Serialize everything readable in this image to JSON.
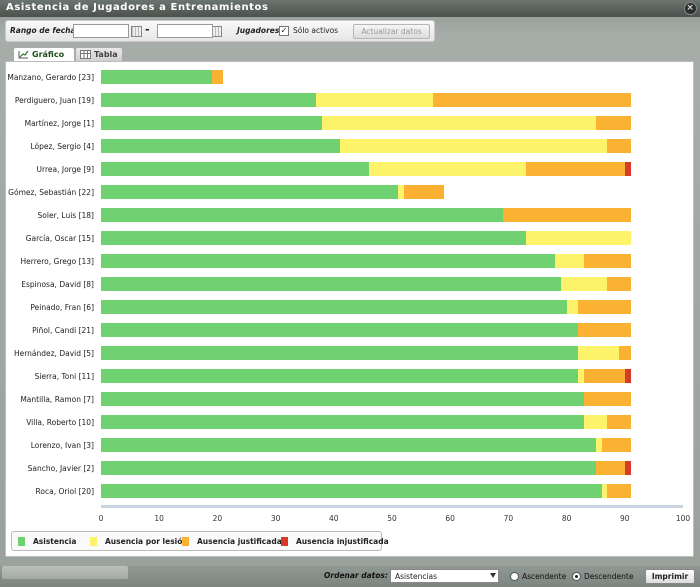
{
  "window": {
    "title": "Asistencia de Jugadores a Entrenamientos",
    "close_symbol": "×"
  },
  "toolbar": {
    "date_range_label": "Rango de fechas",
    "date_from": "",
    "date_to": "",
    "separator": "-",
    "players_label": "Jugadores",
    "active_only_checked": true,
    "active_only_mark": "✓",
    "active_only_label": "Sólo activos",
    "update_button": "Actualizar datos"
  },
  "tabs": [
    {
      "label": "Gráfico",
      "icon": "line-chart-icon",
      "active": true
    },
    {
      "label": "Tabla",
      "icon": "table-icon",
      "active": false
    }
  ],
  "colors": {
    "asistencia": "#6fd16f",
    "lesion": "#fdf36b",
    "justificada": "#fbb131",
    "injustificada": "#d83a2a"
  },
  "chart_data": {
    "type": "bar",
    "orientation": "horizontal",
    "stacked": true,
    "xlim": [
      0,
      100
    ],
    "xticks": [
      0,
      10,
      20,
      30,
      40,
      50,
      60,
      70,
      80,
      90,
      100
    ],
    "legend_position": "bottom-left",
    "categories": [
      "Manzano, Gerardo [23]",
      "Perdiguero, Juan [19]",
      "Martínez, Jorge [1]",
      "López, Sergio [4]",
      "Urrea, Jorge [9]",
      "Gómez, Sebastián [22]",
      "Soler, Luis [18]",
      "García, Oscar [15]",
      "Herrero, Grego [13]",
      "Espinosa, David [8]",
      "Peinado, Fran [6]",
      "Piñol, Candi [21]",
      "Hernández, David [5]",
      "Sierra, Toni [11]",
      "Mantilla, Ramon [7]",
      "Villa, Roberto [10]",
      "Lorenzo, Ivan [3]",
      "Sancho, Javier [2]",
      "Roca, Oriol [20]"
    ],
    "series": [
      {
        "name": "Asistencia",
        "values": [
          19,
          37,
          38,
          41,
          46,
          51,
          69,
          73,
          78,
          79,
          80,
          82,
          82,
          82,
          83,
          83,
          85,
          85,
          86
        ]
      },
      {
        "name": "Ausencia por lesión",
        "values": [
          0,
          20,
          47,
          46,
          27,
          1,
          0,
          18,
          5,
          8,
          2,
          0,
          7,
          1,
          0,
          4,
          1,
          0,
          1
        ]
      },
      {
        "name": "Ausencia justificada",
        "values": [
          2,
          34,
          6,
          4,
          17,
          7,
          22,
          0,
          8,
          4,
          9,
          9,
          2,
          7,
          8,
          4,
          5,
          5,
          4
        ]
      },
      {
        "name": "Ausencia injustificada",
        "values": [
          0,
          0,
          0,
          0,
          1,
          0,
          0,
          0,
          0,
          0,
          0,
          0,
          0,
          1,
          0,
          0,
          0,
          1,
          0
        ]
      }
    ]
  },
  "bottom": {
    "order_label": "Ordenar datos:",
    "order_value": "Asistencias",
    "asc_label": "Ascendente",
    "desc_label": "Descendente",
    "selected_order": "desc",
    "print_button": "Imprimir"
  }
}
